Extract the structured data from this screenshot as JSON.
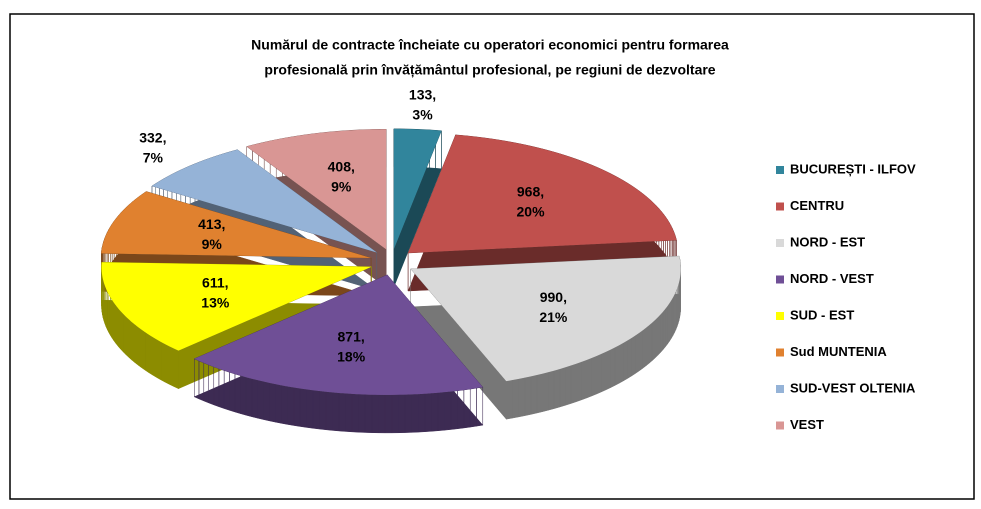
{
  "chart_data": {
    "type": "pie3d",
    "title": [
      "Numărul de contracte încheiate cu operatori economici pentru formarea",
      "profesională prin învățământul profesional, pe regiuni de dezvoltare"
    ],
    "categories": [
      "BUCUREȘTI - ILFOV",
      "CENTRU",
      "NORD - EST",
      "NORD - VEST",
      "SUD - EST",
      "Sud MUNTENIA",
      "SUD-VEST OLTENIA",
      "VEST"
    ],
    "values": [
      133,
      968,
      990,
      871,
      611,
      413,
      332,
      408
    ],
    "value_labels": [
      "133, 3%",
      "968, 20%",
      "990, 21%",
      "871, 18%",
      "611, 13%",
      "413, 9%",
      "332, 7%",
      "408, 9%"
    ],
    "colors": [
      "#31859c",
      "#c0504d",
      "#d9d9d9",
      "#6f4f96",
      "#ffff00",
      "#e0812f",
      "#95b3d7",
      "#d99694"
    ],
    "legend": "right"
  }
}
